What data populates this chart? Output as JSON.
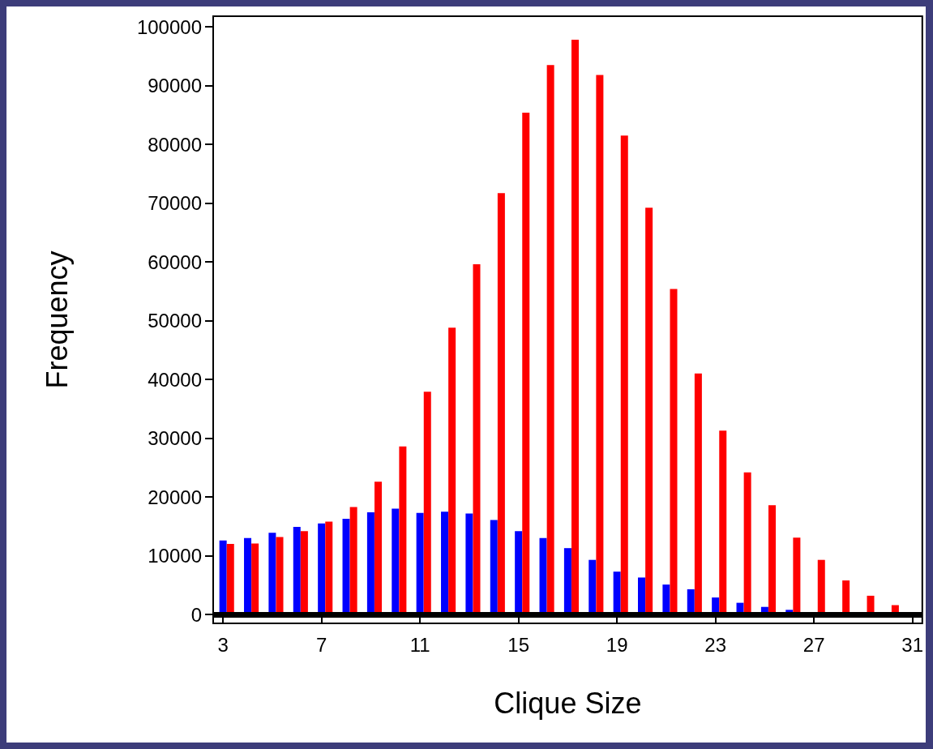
{
  "chart_data": {
    "type": "bar",
    "xlabel": "Clique Size",
    "ylabel": "Frequency",
    "xlim": [
      2.6,
      31.4
    ],
    "xticks": [
      3,
      7,
      11,
      15,
      19,
      23,
      27,
      31
    ],
    "ylim": [
      -1500,
      101800
    ],
    "yticks": [
      0,
      10000,
      20000,
      30000,
      40000,
      50000,
      60000,
      70000,
      80000,
      90000,
      100000
    ],
    "grid": false,
    "series": [
      {
        "color": "#0000ff",
        "x": [
          3,
          4,
          5,
          6,
          7,
          8,
          9,
          10,
          11,
          12,
          13,
          14,
          15,
          16,
          17,
          18,
          19,
          20,
          21,
          22,
          23,
          24,
          25,
          26
        ],
        "values": [
          12600,
          13000,
          13900,
          14900,
          15500,
          16300,
          17400,
          18000,
          17300,
          17500,
          17200,
          16100,
          14200,
          13000,
          11300,
          9300,
          7300,
          6300,
          5100,
          4300,
          2900,
          2000,
          1300,
          800
        ]
      },
      {
        "color": "#ff0000",
        "x": [
          3.3,
          4.3,
          5.3,
          6.3,
          7.3,
          8.3,
          9.3,
          10.3,
          11.3,
          12.3,
          13.3,
          14.3,
          15.3,
          16.3,
          17.3,
          18.3,
          19.3,
          20.3,
          21.3,
          22.3,
          23.3,
          24.3,
          25.3,
          26.3,
          27.3,
          28.3,
          29.3,
          30.3
        ],
        "values": [
          12000,
          12100,
          13200,
          14200,
          15800,
          18300,
          22600,
          28600,
          37900,
          48800,
          59600,
          71700,
          85400,
          93500,
          97800,
          91800,
          81500,
          69200,
          55400,
          41000,
          31300,
          24200,
          18600,
          13100,
          9300,
          5800,
          3200,
          1600
        ]
      }
    ],
    "ref_lines": [
      {
        "axis": "y",
        "value": 0,
        "color": "#000000"
      }
    ]
  }
}
